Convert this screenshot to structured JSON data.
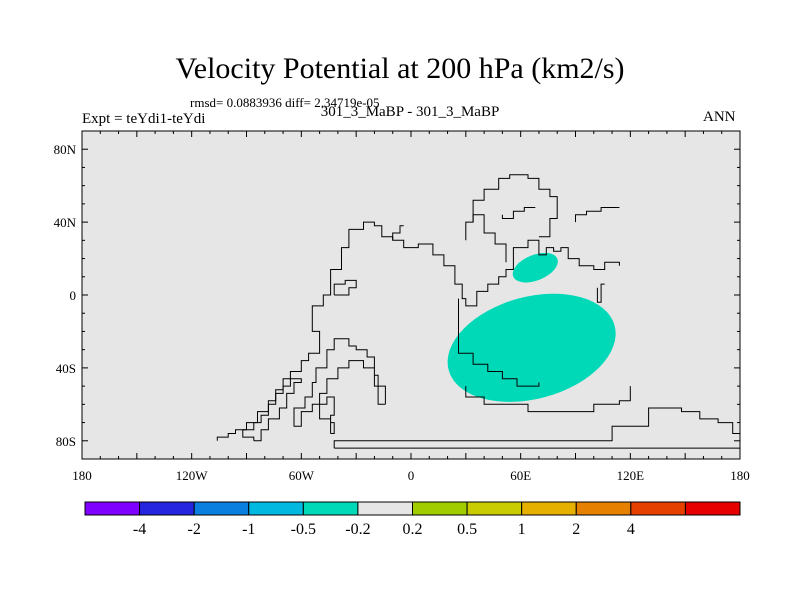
{
  "chart_data": {
    "type": "heatmap",
    "title": "Velocity Potential at 200 hPa (km2/s)",
    "subtitle_left_small": "rmsd= 0.0883936  diff= 2.34719e-05",
    "subtitle_left": "Expt = teYdi1-teYdi",
    "subtitle_center": "301_3_MaBP - 301_3_MaBP",
    "subtitle_right": "ANN",
    "xlim": [
      -180,
      180
    ],
    "ylim": [
      -90,
      90
    ],
    "x_ticks": [
      {
        "value": -180,
        "label": "180"
      },
      {
        "value": -120,
        "label": "120W"
      },
      {
        "value": -60,
        "label": "60W"
      },
      {
        "value": 0,
        "label": "0"
      },
      {
        "value": 60,
        "label": "60E"
      },
      {
        "value": 120,
        "label": "120E"
      },
      {
        "value": 180,
        "label": "180"
      }
    ],
    "y_ticks": [
      {
        "value": 80,
        "label": "80N"
      },
      {
        "value": 40,
        "label": "40N"
      },
      {
        "value": 0,
        "label": "0"
      },
      {
        "value": -40,
        "label": "40S"
      },
      {
        "value": -80,
        "label": "80S"
      }
    ],
    "background_color": "#e6e6e6",
    "contour_fill": [
      {
        "range": "-0.5 to -0.2",
        "color": "#00d9b8",
        "center_lon": 68,
        "center_lat": 15,
        "half_width_lon": 13,
        "half_height_lat": 7
      },
      {
        "range": "-0.5 to -0.2",
        "color": "#00d9b8",
        "center_lon": 66,
        "center_lat": -29,
        "half_width_lon": 47,
        "half_height_lat": 28
      }
    ],
    "colorbar": {
      "colors": [
        "#8000ff",
        "#2525e0",
        "#0a7fe0",
        "#00b8e0",
        "#00d9b8",
        "#e6e6e6",
        "#a0cc00",
        "#c8cc00",
        "#e6b000",
        "#e68000",
        "#e64000",
        "#e60000"
      ],
      "labels": [
        "-4",
        "-2",
        "-1",
        "-0.5",
        "-0.2",
        "0.2",
        "0.5",
        "1",
        "2",
        "4"
      ]
    },
    "coastlines": [
      [
        [
          -106,
          -80
        ],
        [
          -106,
          -78
        ],
        [
          -100,
          -78
        ],
        [
          -100,
          -76
        ],
        [
          -96,
          -76
        ],
        [
          -96,
          -74
        ],
        [
          -90,
          -74
        ],
        [
          -90,
          -70
        ],
        [
          -84,
          -70
        ],
        [
          -84,
          -64
        ],
        [
          -78,
          -64
        ],
        [
          -78,
          -58
        ],
        [
          -74,
          -58
        ],
        [
          -74,
          -52
        ],
        [
          -70,
          -52
        ],
        [
          -70,
          -46
        ],
        [
          -66,
          -46
        ],
        [
          -66,
          -42
        ],
        [
          -60,
          -42
        ],
        [
          -60,
          -36
        ],
        [
          -56,
          -36
        ],
        [
          -56,
          -32
        ],
        [
          -50,
          -32
        ],
        [
          -50,
          -20
        ],
        [
          -54,
          -20
        ],
        [
          -54,
          -6
        ],
        [
          -48,
          -6
        ],
        [
          -48,
          0
        ],
        [
          -44,
          0
        ],
        [
          -44,
          14
        ],
        [
          -38,
          14
        ],
        [
          -38,
          26
        ],
        [
          -34,
          26
        ],
        [
          -34,
          36
        ],
        [
          -26,
          36
        ],
        [
          -26,
          40
        ],
        [
          -20,
          40
        ],
        [
          -20,
          38
        ],
        [
          -16,
          38
        ],
        [
          -16,
          32
        ],
        [
          -10,
          32
        ],
        [
          -10,
          30
        ],
        [
          -4,
          30
        ],
        [
          -4,
          26
        ],
        [
          4,
          26
        ],
        [
          4,
          28
        ],
        [
          12,
          28
        ],
        [
          12,
          22
        ],
        [
          18,
          22
        ],
        [
          18,
          16
        ],
        [
          24,
          16
        ],
        [
          24,
          6
        ],
        [
          28,
          6
        ],
        [
          28,
          -2
        ],
        [
          30,
          -2
        ],
        [
          30,
          -6
        ],
        [
          36,
          -6
        ],
        [
          36,
          2
        ],
        [
          42,
          2
        ],
        [
          42,
          6
        ],
        [
          48,
          6
        ],
        [
          48,
          10
        ],
        [
          52,
          10
        ],
        [
          52,
          14
        ],
        [
          56,
          14
        ],
        [
          56,
          26
        ],
        [
          64,
          26
        ],
        [
          64,
          30
        ],
        [
          70,
          30
        ],
        [
          70,
          22
        ],
        [
          74,
          22
        ],
        [
          74,
          26
        ],
        [
          78,
          26
        ],
        [
          78,
          24
        ],
        [
          82,
          24
        ],
        [
          82,
          26
        ],
        [
          86,
          26
        ],
        [
          86,
          20
        ],
        [
          92,
          20
        ],
        [
          92,
          16
        ],
        [
          100,
          16
        ],
        [
          100,
          14
        ],
        [
          106,
          14
        ],
        [
          106,
          18
        ],
        [
          114,
          18
        ],
        [
          114,
          16
        ]
      ],
      [
        [
          -14,
          -60
        ],
        [
          -14,
          -50
        ],
        [
          -20,
          -50
        ],
        [
          -20,
          -34
        ],
        [
          -24,
          -34
        ],
        [
          -24,
          -30
        ],
        [
          -30,
          -30
        ],
        [
          -30,
          -28
        ],
        [
          -34,
          -28
        ],
        [
          -34,
          -24
        ],
        [
          -42,
          -24
        ],
        [
          -42,
          -30
        ],
        [
          -46,
          -30
        ],
        [
          -46,
          -40
        ],
        [
          -52,
          -40
        ],
        [
          -52,
          -48
        ],
        [
          -54,
          -48
        ],
        [
          -54,
          -56
        ],
        [
          -58,
          -56
        ],
        [
          -58,
          -62
        ],
        [
          -64,
          -62
        ],
        [
          -64,
          -72
        ],
        [
          -60,
          -72
        ],
        [
          -60,
          -64
        ],
        [
          -54,
          -64
        ],
        [
          -54,
          -60
        ],
        [
          -50,
          -60
        ],
        [
          -50,
          -54
        ],
        [
          -46,
          -54
        ],
        [
          -46,
          -46
        ],
        [
          -40,
          -46
        ],
        [
          -40,
          -40
        ],
        [
          -34,
          -40
        ],
        [
          -34,
          -36
        ],
        [
          -26,
          -36
        ],
        [
          -26,
          -40
        ],
        [
          -20,
          -40
        ],
        [
          -20,
          -44
        ],
        [
          -18,
          -44
        ],
        [
          -18,
          -60
        ],
        [
          -14,
          -60
        ]
      ],
      [
        [
          -86,
          -80
        ],
        [
          -82,
          -80
        ],
        [
          -82,
          -74
        ],
        [
          -78,
          -74
        ],
        [
          -78,
          -68
        ],
        [
          -72,
          -68
        ],
        [
          -72,
          -62
        ],
        [
          -68,
          -62
        ],
        [
          -68,
          -54
        ],
        [
          -64,
          -54
        ],
        [
          -64,
          -48
        ],
        [
          -60,
          -48
        ],
        [
          -60,
          -46
        ],
        [
          -66,
          -46
        ],
        [
          -66,
          -50
        ],
        [
          -70,
          -50
        ],
        [
          -70,
          -54
        ],
        [
          -74,
          -54
        ],
        [
          -74,
          -60
        ],
        [
          -78,
          -60
        ],
        [
          -78,
          -66
        ],
        [
          -82,
          -66
        ],
        [
          -82,
          -70
        ],
        [
          -86,
          -70
        ],
        [
          -86,
          -74
        ],
        [
          -92,
          -74
        ],
        [
          -92,
          -78
        ],
        [
          -86,
          -78
        ],
        [
          -86,
          -80
        ]
      ],
      [
        [
          -44,
          -76
        ],
        [
          -44,
          -68
        ],
        [
          -50,
          -68
        ],
        [
          -50,
          -60
        ],
        [
          -46,
          -60
        ],
        [
          -46,
          -56
        ],
        [
          -42,
          -56
        ],
        [
          -42,
          -66
        ],
        [
          -44,
          -66
        ],
        [
          -44,
          -70
        ],
        [
          -42,
          -70
        ],
        [
          -42,
          -76
        ],
        [
          -44,
          -76
        ]
      ],
      [
        [
          -42,
          -84
        ],
        [
          -42,
          -80
        ],
        [
          110,
          -80
        ],
        [
          110,
          -72
        ],
        [
          130,
          -72
        ],
        [
          130,
          -62
        ],
        [
          148,
          -62
        ],
        [
          148,
          -64
        ],
        [
          158,
          -64
        ],
        [
          158,
          -68
        ],
        [
          168,
          -68
        ],
        [
          168,
          -70
        ],
        [
          176,
          -70
        ],
        [
          176,
          -76
        ],
        [
          180,
          -76
        ],
        [
          180,
          -84
        ],
        [
          -42,
          -84
        ]
      ],
      [
        [
          -42,
          0
        ],
        [
          -42,
          6
        ],
        [
          -36,
          6
        ],
        [
          -36,
          8
        ],
        [
          -30,
          8
        ],
        [
          -30,
          4
        ],
        [
          -34,
          4
        ],
        [
          -34,
          0
        ],
        [
          -42,
          0
        ]
      ],
      [
        [
          30,
          -50
        ],
        [
          30,
          -56
        ],
        [
          40,
          -56
        ],
        [
          40,
          -60
        ],
        [
          64,
          -60
        ],
        [
          64,
          -64
        ],
        [
          100,
          -64
        ],
        [
          100,
          -60
        ],
        [
          114,
          -60
        ],
        [
          114,
          -58
        ],
        [
          120,
          -58
        ],
        [
          120,
          -50
        ]
      ],
      [
        [
          26,
          -2
        ],
        [
          26,
          -32
        ],
        [
          34,
          -32
        ],
        [
          34,
          -38
        ],
        [
          42,
          -38
        ],
        [
          42,
          -42
        ],
        [
          50,
          -42
        ],
        [
          50,
          -46
        ],
        [
          58,
          -46
        ],
        [
          58,
          -50
        ],
        [
          70,
          -50
        ],
        [
          70,
          -48
        ]
      ],
      [
        [
          30,
          30
        ],
        [
          30,
          40
        ],
        [
          34,
          40
        ],
        [
          34,
          52
        ],
        [
          40,
          52
        ],
        [
          40,
          58
        ],
        [
          48,
          58
        ],
        [
          48,
          64
        ],
        [
          54,
          64
        ],
        [
          54,
          66
        ],
        [
          64,
          66
        ],
        [
          64,
          64
        ],
        [
          70,
          64
        ],
        [
          70,
          58
        ],
        [
          76,
          58
        ],
        [
          76,
          54
        ],
        [
          80,
          54
        ],
        [
          80,
          42
        ],
        [
          76,
          42
        ],
        [
          76,
          32
        ],
        [
          70,
          32
        ]
      ],
      [
        [
          52,
          18
        ],
        [
          52,
          28
        ],
        [
          46,
          28
        ],
        [
          46,
          34
        ],
        [
          40,
          34
        ],
        [
          40,
          44
        ],
        [
          34,
          44
        ],
        [
          34,
          40
        ]
      ],
      [
        [
          50,
          44
        ],
        [
          50,
          42
        ],
        [
          56,
          42
        ],
        [
          56,
          46
        ],
        [
          62,
          46
        ],
        [
          62,
          48
        ],
        [
          68,
          48
        ]
      ],
      [
        [
          90,
          40
        ],
        [
          90,
          44
        ],
        [
          96,
          44
        ],
        [
          96,
          46
        ],
        [
          104,
          46
        ],
        [
          104,
          48
        ],
        [
          114,
          48
        ]
      ],
      [
        [
          102,
          4
        ],
        [
          102,
          -4
        ],
        [
          104,
          -4
        ],
        [
          104,
          6
        ],
        [
          106,
          6
        ]
      ],
      [
        [
          -10,
          30
        ],
        [
          -10,
          34
        ],
        [
          -6,
          34
        ],
        [
          -6,
          38
        ],
        [
          -4,
          38
        ]
      ]
    ]
  }
}
